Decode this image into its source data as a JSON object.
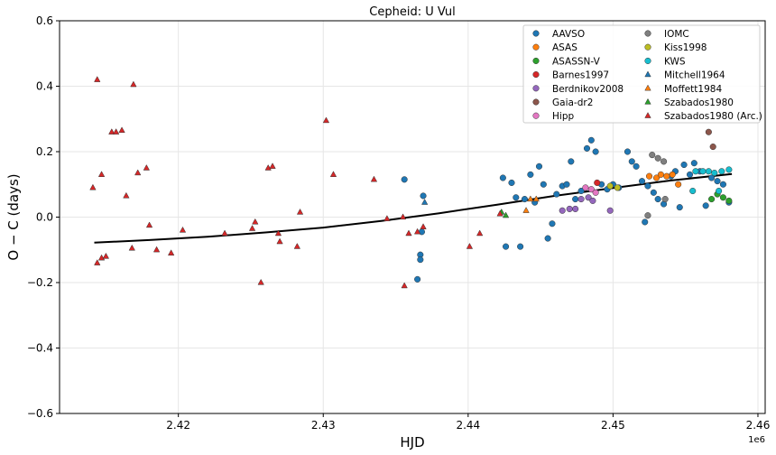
{
  "chart_data": {
    "type": "scatter",
    "title": "Cepheid: U Vul",
    "xlabel": "HJD",
    "ylabel": "O − C (days)",
    "x_offset_label": "1e6",
    "xlim": [
      2.4118,
      2.4605
    ],
    "ylim": [
      -0.6,
      0.6
    ],
    "x_ticks": [
      2.42,
      2.43,
      2.44,
      2.45,
      2.46
    ],
    "x_tick_labels": [
      "2.42",
      "2.43",
      "2.44",
      "2.45",
      "2.46"
    ],
    "y_ticks": [
      -0.6,
      -0.4,
      -0.2,
      0.0,
      0.2,
      0.4,
      0.6
    ],
    "y_tick_labels": [
      "−0.6",
      "−0.4",
      "−0.2",
      "0.0",
      "0.2",
      "0.4",
      "0.6"
    ],
    "grid": true,
    "legend_position": "top-right",
    "legend_columns": 2,
    "series": [
      {
        "name": "AAVSO",
        "color": "#1f77b4",
        "marker": "circle",
        "points": [
          [
            2.4356,
            0.115
          ],
          [
            2.4369,
            0.065
          ],
          [
            2.4368,
            -0.045
          ],
          [
            2.4367,
            -0.115
          ],
          [
            2.4367,
            -0.13
          ],
          [
            2.4365,
            -0.19
          ],
          [
            2.4424,
            0.12
          ],
          [
            2.4426,
            -0.09
          ],
          [
            2.443,
            0.105
          ],
          [
            2.4433,
            0.06
          ],
          [
            2.4436,
            -0.09
          ],
          [
            2.4439,
            0.055
          ],
          [
            2.4443,
            0.13
          ],
          [
            2.4446,
            0.045
          ],
          [
            2.4449,
            0.155
          ],
          [
            2.4452,
            0.1
          ],
          [
            2.4455,
            -0.065
          ],
          [
            2.4458,
            -0.02
          ],
          [
            2.4461,
            0.07
          ],
          [
            2.4465,
            0.095
          ],
          [
            2.4468,
            0.1
          ],
          [
            2.4471,
            0.17
          ],
          [
            2.4474,
            0.055
          ],
          [
            2.4478,
            0.08
          ],
          [
            2.4482,
            0.21
          ],
          [
            2.4485,
            0.235
          ],
          [
            2.4488,
            0.2
          ],
          [
            2.4492,
            0.1
          ],
          [
            2.4496,
            0.085
          ],
          [
            2.45,
            0.1
          ],
          [
            2.4504,
            0.09
          ],
          [
            2.451,
            0.2
          ],
          [
            2.4513,
            0.17
          ],
          [
            2.4516,
            0.155
          ],
          [
            2.452,
            0.11
          ],
          [
            2.4522,
            -0.015
          ],
          [
            2.4524,
            0.095
          ],
          [
            2.4528,
            0.075
          ],
          [
            2.4531,
            0.055
          ],
          [
            2.4535,
            0.04
          ],
          [
            2.454,
            0.125
          ],
          [
            2.4543,
            0.14
          ],
          [
            2.4546,
            0.03
          ],
          [
            2.4549,
            0.16
          ],
          [
            2.4553,
            0.13
          ],
          [
            2.4556,
            0.165
          ],
          [
            2.456,
            0.14
          ],
          [
            2.4564,
            0.035
          ],
          [
            2.4568,
            0.12
          ],
          [
            2.4572,
            0.11
          ],
          [
            2.4576,
            0.1
          ],
          [
            2.458,
            0.045
          ]
        ]
      },
      {
        "name": "ASAS",
        "color": "#ff7f0e",
        "marker": "circle",
        "points": [
          [
            2.4525,
            0.125
          ],
          [
            2.453,
            0.12
          ],
          [
            2.4533,
            0.13
          ],
          [
            2.4537,
            0.125
          ],
          [
            2.4541,
            0.13
          ],
          [
            2.4545,
            0.1
          ]
        ]
      },
      {
        "name": "ASASSN-V",
        "color": "#2ca02c",
        "marker": "circle",
        "points": [
          [
            2.4568,
            0.055
          ],
          [
            2.4572,
            0.07
          ],
          [
            2.4576,
            0.06
          ],
          [
            2.458,
            0.05
          ]
        ]
      },
      {
        "name": "Barnes1997",
        "color": "#d62728",
        "marker": "circle",
        "points": [
          [
            2.4489,
            0.105
          ]
        ]
      },
      {
        "name": "Berdnikov2008",
        "color": "#9467bd",
        "marker": "circle",
        "points": [
          [
            2.4465,
            0.02
          ],
          [
            2.447,
            0.025
          ],
          [
            2.4474,
            0.025
          ],
          [
            2.4478,
            0.055
          ],
          [
            2.4483,
            0.06
          ],
          [
            2.4486,
            0.05
          ],
          [
            2.4498,
            0.02
          ]
        ]
      },
      {
        "name": "Gaia-dr2",
        "color": "#8c564b",
        "marker": "circle",
        "points": [
          [
            2.4566,
            0.26
          ],
          [
            2.4569,
            0.215
          ]
        ]
      },
      {
        "name": "Hipp",
        "color": "#e377c2",
        "marker": "circle",
        "points": [
          [
            2.4481,
            0.09
          ],
          [
            2.4485,
            0.085
          ],
          [
            2.4488,
            0.075
          ]
        ]
      },
      {
        "name": "IOMC",
        "color": "#7f7f7f",
        "marker": "circle",
        "points": [
          [
            2.4527,
            0.19
          ],
          [
            2.4531,
            0.18
          ],
          [
            2.4535,
            0.17
          ],
          [
            2.4524,
            0.005
          ],
          [
            2.4536,
            0.055
          ]
        ]
      },
      {
        "name": "Kiss1998",
        "color": "#bcbd22",
        "marker": "circle",
        "points": [
          [
            2.4498,
            0.095
          ],
          [
            2.4503,
            0.09
          ]
        ]
      },
      {
        "name": "KWS",
        "color": "#17becf",
        "marker": "circle",
        "points": [
          [
            2.4557,
            0.14
          ],
          [
            2.4562,
            0.14
          ],
          [
            2.4566,
            0.14
          ],
          [
            2.457,
            0.135
          ],
          [
            2.4575,
            0.14
          ],
          [
            2.458,
            0.145
          ],
          [
            2.4573,
            0.08
          ],
          [
            2.4555,
            0.08
          ]
        ]
      },
      {
        "name": "Mitchell1964",
        "color": "#1f77b4",
        "marker": "triangle",
        "points": [
          [
            2.437,
            0.045
          ]
        ]
      },
      {
        "name": "Moffett1984",
        "color": "#ff7f0e",
        "marker": "triangle",
        "points": [
          [
            2.4443,
            0.055
          ],
          [
            2.4447,
            0.055
          ],
          [
            2.444,
            0.02
          ]
        ]
      },
      {
        "name": "Szabados1980",
        "color": "#2ca02c",
        "marker": "triangle",
        "points": [
          [
            2.4423,
            0.015
          ],
          [
            2.4426,
            0.005
          ]
        ]
      },
      {
        "name": "Szabados1980 (Arc.)",
        "color": "#d62728",
        "marker": "triangle",
        "points": [
          [
            2.4141,
            0.09
          ],
          [
            2.4144,
            0.42
          ],
          [
            2.4144,
            -0.14
          ],
          [
            2.4147,
            0.13
          ],
          [
            2.4147,
            -0.125
          ],
          [
            2.415,
            -0.12
          ],
          [
            2.4154,
            0.26
          ],
          [
            2.4157,
            0.26
          ],
          [
            2.4161,
            0.265
          ],
          [
            2.4164,
            0.065
          ],
          [
            2.4169,
            0.405
          ],
          [
            2.4168,
            -0.095
          ],
          [
            2.4172,
            0.135
          ],
          [
            2.4178,
            0.15
          ],
          [
            2.418,
            -0.025
          ],
          [
            2.4185,
            -0.1
          ],
          [
            2.4195,
            -0.11
          ],
          [
            2.4203,
            -0.04
          ],
          [
            2.4232,
            -0.05
          ],
          [
            2.4251,
            -0.035
          ],
          [
            2.4253,
            -0.015
          ],
          [
            2.4257,
            -0.2
          ],
          [
            2.4262,
            0.15
          ],
          [
            2.4265,
            0.155
          ],
          [
            2.4269,
            -0.05
          ],
          [
            2.427,
            -0.075
          ],
          [
            2.4282,
            -0.09
          ],
          [
            2.4284,
            0.015
          ],
          [
            2.4302,
            0.295
          ],
          [
            2.4307,
            0.13
          ],
          [
            2.4335,
            0.115
          ],
          [
            2.4344,
            -0.005
          ],
          [
            2.4355,
            0.0
          ],
          [
            2.4356,
            -0.21
          ],
          [
            2.4359,
            -0.05
          ],
          [
            2.4365,
            -0.045
          ],
          [
            2.4369,
            -0.03
          ],
          [
            2.4401,
            -0.09
          ],
          [
            2.4408,
            -0.05
          ],
          [
            2.4422,
            0.01
          ]
        ]
      }
    ],
    "fit_line": {
      "color": "#000000",
      "points": [
        [
          2.4142,
          -0.078
        ],
        [
          2.418,
          -0.07
        ],
        [
          2.422,
          -0.06
        ],
        [
          2.426,
          -0.047
        ],
        [
          2.43,
          -0.032
        ],
        [
          2.434,
          -0.012
        ],
        [
          2.438,
          0.012
        ],
        [
          2.442,
          0.038
        ],
        [
          2.446,
          0.065
        ],
        [
          2.45,
          0.089
        ],
        [
          2.454,
          0.112
        ],
        [
          2.4582,
          0.132
        ]
      ]
    }
  }
}
